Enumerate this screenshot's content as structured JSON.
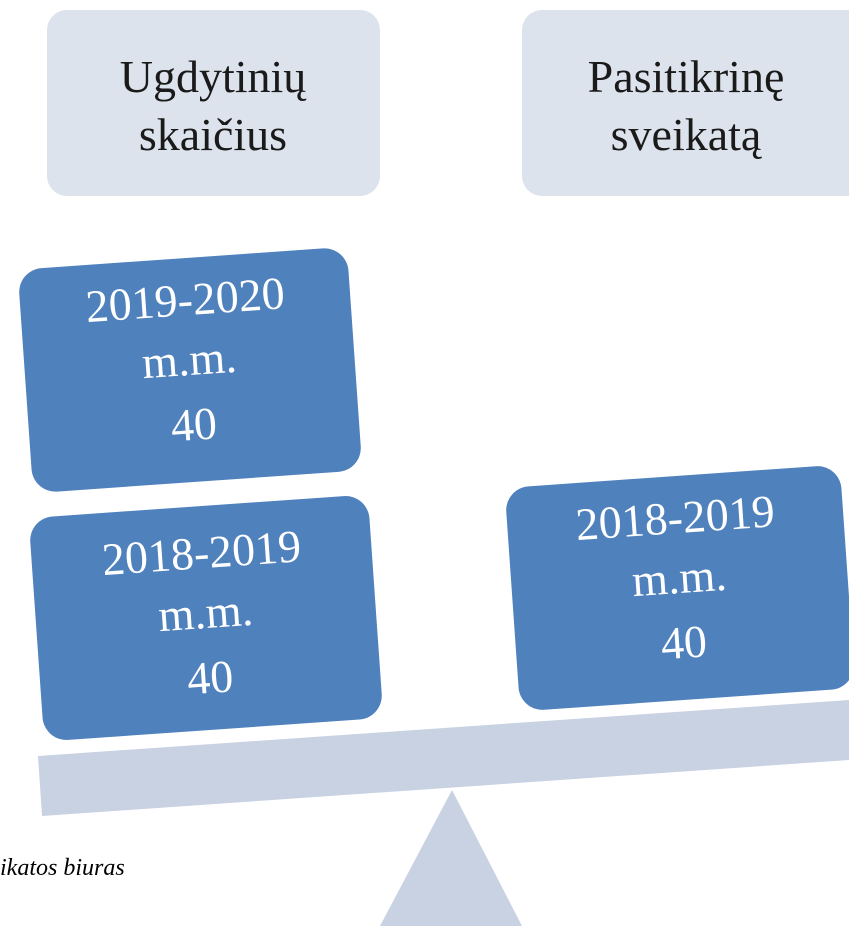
{
  "headers": [
    {
      "lines": [
        "Ugdytinių",
        "skaičius"
      ]
    },
    {
      "lines": [
        "Pasitikrinę",
        "sveikatą"
      ]
    }
  ],
  "left_boxes": [
    {
      "lines": [
        "2019-2020",
        "m.m.",
        "40"
      ]
    },
    {
      "lines": [
        "2018-2019",
        "m.m.",
        "40"
      ]
    }
  ],
  "right_boxes": [
    {
      "lines": [
        "2018-2019",
        "m.m.",
        "40"
      ]
    }
  ],
  "caption": "ikatos biuras"
}
